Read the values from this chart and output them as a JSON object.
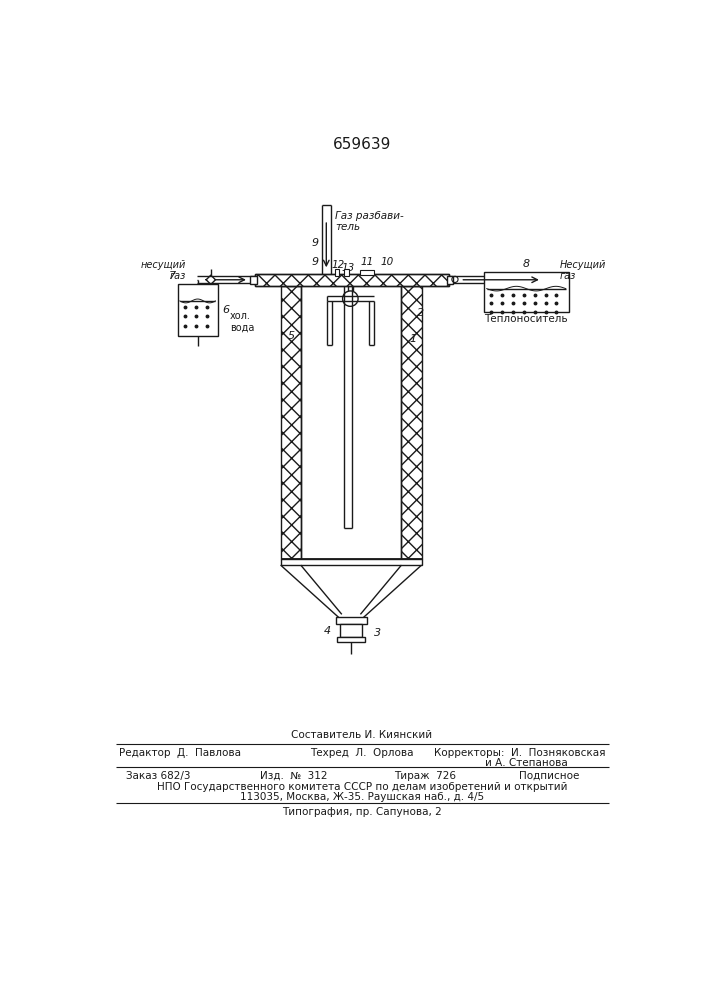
{
  "title": "659639",
  "bg": "#ffffff",
  "fg": "#1a1a1a",
  "footer_composer": "Составитель И. Киянский",
  "footer_editor": "Редактор  Д.  Павлова",
  "footer_tech": "Техред  Л.  Орлова",
  "footer_corr": "Корректоры:  И.  Позняковская",
  "footer_corr2": "и А. Степанова",
  "footer_order": "Заказ 682/3",
  "footer_pub": "Изд.  №  312",
  "footer_circ": "Тираж  726",
  "footer_sub": "Подписное",
  "footer_npo": "НПО Государственного комитета СССР по делам изобретений и открытий",
  "footer_addr": "113035, Москва, Ж-35. Раушская наб., д. 4/5",
  "footer_typo": "Типография, пр. Сапунова, 2",
  "label_gas_dilute": "Газ разбави-\nтель",
  "label_carrier_left": "несущий\nгаз",
  "label_carrier_right": "Несущий\nгаз",
  "label_coolant": "Теплоноситель",
  "label_cold_water": "хол.\nвода"
}
